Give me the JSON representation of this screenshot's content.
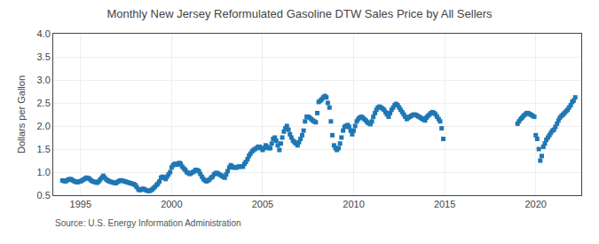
{
  "chart_data": {
    "type": "scatter",
    "title": "Monthly New Jersey Reformulated Gasoline DTW Sales Price by All Sellers",
    "ylabel": "Dollars per Gallon",
    "annotations": [
      "Source: U.S. Energy Information Administration"
    ],
    "marker": "square",
    "grid": true,
    "xlim": [
      1993.5,
      2022.5
    ],
    "ylim": [
      0.5,
      4.0
    ],
    "xticks": [
      1995,
      2000,
      2005,
      2010,
      2015,
      2020
    ],
    "yticks": [
      0.5,
      {
        "value": 1,
        "label": "1.0"
      },
      1.5,
      {
        "value": 2,
        "label": "2.0"
      },
      2.5,
      {
        "value": 3,
        "label": "3.0"
      },
      3.5,
      {
        "value": 4,
        "label": "4.0"
      }
    ],
    "x": [
      1994.0,
      1994.08,
      1994.17,
      1994.25,
      1994.33,
      1994.42,
      1994.5,
      1994.58,
      1994.67,
      1994.75,
      1994.83,
      1994.92,
      1995.0,
      1995.08,
      1995.17,
      1995.25,
      1995.33,
      1995.42,
      1995.5,
      1995.58,
      1995.67,
      1995.75,
      1995.83,
      1995.92,
      1996.0,
      1996.08,
      1996.17,
      1996.25,
      1996.33,
      1996.42,
      1996.5,
      1996.58,
      1996.67,
      1996.75,
      1996.83,
      1996.92,
      1997.0,
      1997.08,
      1997.17,
      1997.25,
      1997.33,
      1997.42,
      1997.5,
      1997.58,
      1997.67,
      1997.75,
      1997.83,
      1997.92,
      1998.0,
      1998.08,
      1998.17,
      1998.25,
      1998.33,
      1998.42,
      1998.5,
      1998.58,
      1998.67,
      1998.75,
      1998.83,
      1998.92,
      1999.0,
      1999.08,
      1999.17,
      1999.25,
      1999.33,
      1999.42,
      1999.5,
      1999.58,
      1999.67,
      1999.75,
      1999.83,
      1999.92,
      2000.0,
      2000.08,
      2000.17,
      2000.25,
      2000.33,
      2000.42,
      2000.5,
      2000.58,
      2000.67,
      2000.75,
      2000.83,
      2000.92,
      2001.0,
      2001.08,
      2001.17,
      2001.25,
      2001.33,
      2001.42,
      2001.5,
      2001.58,
      2001.67,
      2001.75,
      2001.83,
      2001.92,
      2002.0,
      2002.08,
      2002.17,
      2002.25,
      2002.33,
      2002.42,
      2002.5,
      2002.58,
      2002.67,
      2002.75,
      2002.83,
      2002.92,
      2003.0,
      2003.08,
      2003.17,
      2003.25,
      2003.33,
      2003.42,
      2003.5,
      2003.58,
      2003.67,
      2003.75,
      2003.83,
      2003.92,
      2004.0,
      2004.08,
      2004.17,
      2004.25,
      2004.33,
      2004.42,
      2004.5,
      2004.58,
      2004.67,
      2004.75,
      2004.83,
      2004.92,
      2005.0,
      2005.08,
      2005.17,
      2005.25,
      2005.33,
      2005.42,
      2005.5,
      2005.58,
      2005.67,
      2005.75,
      2005.83,
      2005.92,
      2006.0,
      2006.08,
      2006.17,
      2006.25,
      2006.33,
      2006.42,
      2006.5,
      2006.58,
      2006.67,
      2006.75,
      2006.83,
      2006.92,
      2007.0,
      2007.08,
      2007.17,
      2007.25,
      2007.33,
      2007.42,
      2007.5,
      2007.58,
      2007.67,
      2007.75,
      2007.83,
      2007.92,
      2008.0,
      2008.08,
      2008.17,
      2008.25,
      2008.33,
      2008.42,
      2008.5,
      2008.58,
      2008.67,
      2008.75,
      2008.83,
      2008.92,
      2009.0,
      2009.08,
      2009.17,
      2009.25,
      2009.33,
      2009.42,
      2009.5,
      2009.58,
      2009.67,
      2009.75,
      2009.83,
      2009.92,
      2010.0,
      2010.08,
      2010.17,
      2010.25,
      2010.33,
      2010.42,
      2010.5,
      2010.58,
      2010.67,
      2010.75,
      2010.83,
      2010.92,
      2011.0,
      2011.08,
      2011.17,
      2011.25,
      2011.33,
      2011.42,
      2011.5,
      2011.58,
      2011.67,
      2011.75,
      2011.83,
      2011.92,
      2012.0,
      2012.08,
      2012.17,
      2012.25,
      2012.33,
      2012.42,
      2012.5,
      2012.58,
      2012.67,
      2012.75,
      2012.83,
      2012.92,
      2013.0,
      2013.08,
      2013.17,
      2013.25,
      2013.33,
      2013.42,
      2013.5,
      2013.58,
      2013.67,
      2013.75,
      2013.83,
      2013.92,
      2014.0,
      2014.08,
      2014.17,
      2014.25,
      2014.33,
      2014.42,
      2014.5,
      2014.58,
      2014.67,
      2014.75,
      2014.83,
      2014.92,
      2019.0,
      2019.08,
      2019.17,
      2019.25,
      2019.33,
      2019.42,
      2019.5,
      2019.58,
      2019.67,
      2019.75,
      2019.83,
      2019.92,
      2020.0,
      2020.08,
      2020.17,
      2020.25,
      2020.33,
      2020.42,
      2020.5,
      2020.58,
      2020.67,
      2020.75,
      2020.83,
      2020.92,
      2021.0,
      2021.08,
      2021.17,
      2021.25,
      2021.33,
      2021.42,
      2021.5,
      2021.58,
      2021.67,
      2021.75,
      2021.83,
      2021.92,
      2022.0,
      2022.08,
      2022.17
    ],
    "values": [
      0.82,
      0.81,
      0.8,
      0.82,
      0.84,
      0.85,
      0.84,
      0.82,
      0.8,
      0.79,
      0.78,
      0.8,
      0.8,
      0.82,
      0.84,
      0.86,
      0.88,
      0.87,
      0.85,
      0.82,
      0.8,
      0.79,
      0.78,
      0.77,
      0.8,
      0.84,
      0.88,
      0.92,
      0.88,
      0.84,
      0.82,
      0.8,
      0.79,
      0.78,
      0.77,
      0.76,
      0.78,
      0.8,
      0.82,
      0.82,
      0.81,
      0.8,
      0.79,
      0.78,
      0.77,
      0.76,
      0.75,
      0.74,
      0.72,
      0.68,
      0.63,
      0.61,
      0.62,
      0.64,
      0.63,
      0.61,
      0.6,
      0.59,
      0.6,
      0.62,
      0.65,
      0.68,
      0.72,
      0.75,
      0.8,
      0.88,
      0.9,
      0.88,
      0.85,
      0.9,
      0.95,
      1.0,
      1.1,
      1.15,
      1.18,
      1.17,
      1.16,
      1.2,
      1.18,
      1.12,
      1.08,
      1.05,
      1.0,
      0.98,
      0.96,
      0.98,
      1.0,
      1.02,
      1.05,
      1.04,
      1.02,
      0.96,
      0.9,
      0.85,
      0.82,
      0.8,
      0.82,
      0.84,
      0.88,
      0.9,
      0.95,
      0.98,
      0.98,
      0.96,
      0.94,
      0.92,
      0.9,
      0.88,
      0.95,
      1.02,
      1.1,
      1.15,
      1.12,
      1.1,
      1.1,
      1.1,
      1.12,
      1.12,
      1.12,
      1.12,
      1.18,
      1.22,
      1.28,
      1.35,
      1.4,
      1.45,
      1.48,
      1.5,
      1.52,
      1.55,
      1.55,
      1.52,
      1.48,
      1.52,
      1.58,
      1.55,
      1.52,
      1.52,
      1.62,
      1.72,
      1.75,
      1.68,
      1.58,
      1.48,
      1.62,
      1.75,
      1.88,
      1.95,
      2.0,
      1.92,
      1.82,
      1.75,
      1.68,
      1.65,
      1.62,
      1.58,
      1.65,
      1.72,
      1.8,
      1.9,
      2.1,
      2.2,
      2.2,
      2.18,
      2.15,
      2.12,
      2.1,
      2.08,
      2.28,
      2.52,
      2.55,
      2.58,
      2.62,
      2.65,
      2.62,
      2.5,
      2.4,
      2.1,
      1.8,
      1.58,
      1.52,
      1.48,
      1.52,
      1.62,
      1.75,
      1.9,
      1.98,
      2.0,
      2.02,
      1.98,
      1.9,
      1.82,
      1.9,
      2.0,
      2.1,
      2.15,
      2.18,
      2.2,
      2.18,
      2.15,
      2.12,
      2.08,
      2.06,
      2.04,
      2.1,
      2.2,
      2.28,
      2.35,
      2.4,
      2.42,
      2.4,
      2.38,
      2.35,
      2.3,
      2.25,
      2.2,
      2.28,
      2.35,
      2.4,
      2.45,
      2.48,
      2.45,
      2.4,
      2.35,
      2.3,
      2.25,
      2.2,
      2.15,
      2.18,
      2.2,
      2.22,
      2.24,
      2.25,
      2.24,
      2.22,
      2.2,
      2.18,
      2.16,
      2.14,
      2.12,
      2.18,
      2.22,
      2.25,
      2.28,
      2.3,
      2.28,
      2.25,
      2.2,
      2.15,
      2.1,
      1.95,
      1.72,
      2.05,
      2.1,
      2.15,
      2.18,
      2.22,
      2.25,
      2.28,
      2.28,
      2.26,
      2.24,
      2.22,
      2.2,
      1.8,
      1.72,
      1.5,
      1.25,
      1.35,
      1.55,
      1.62,
      1.7,
      1.75,
      1.8,
      1.85,
      1.9,
      1.92,
      1.98,
      2.05,
      2.12,
      2.18,
      2.22,
      2.25,
      2.28,
      2.32,
      2.35,
      2.4,
      2.45,
      2.52,
      2.55,
      2.62
    ]
  }
}
